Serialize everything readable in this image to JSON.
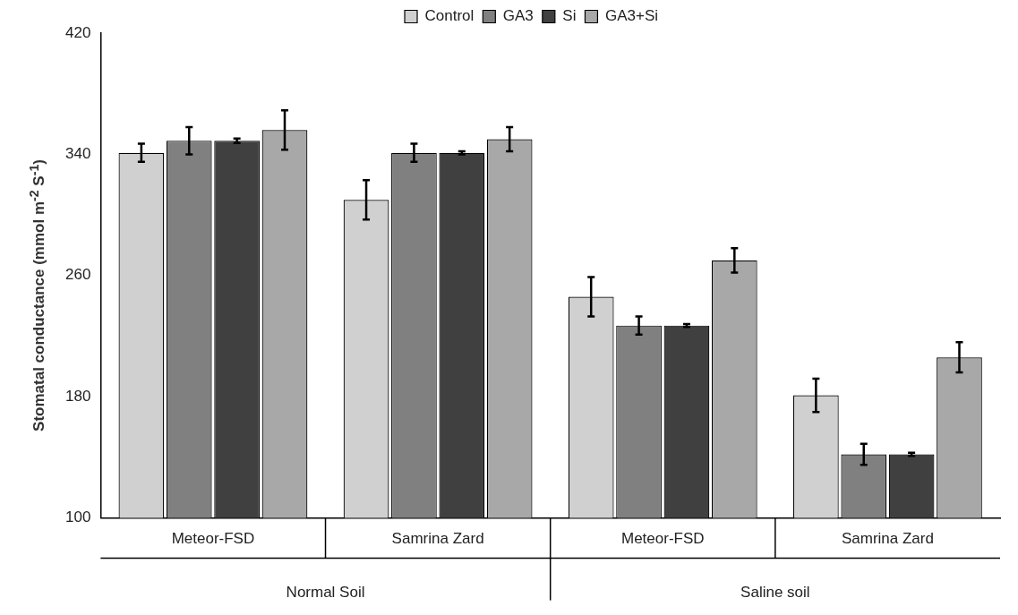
{
  "chart_data": {
    "type": "bar",
    "ylabel": "Stomatal conductance (mmol m$^{-2}$ S$^{-1}$)",
    "categories": [
      "Meteor-FSD",
      "Samrina Zard",
      "Meteor-FSD",
      "Samrina Zard"
    ],
    "series": [
      {
        "name": "Control",
        "color": "#d0d0d0",
        "values": [
          341,
          310,
          246,
          181
        ],
        "errors": [
          6,
          13,
          13,
          11
        ]
      },
      {
        "name": "GA3",
        "color": "#808080",
        "values": [
          349,
          341,
          227,
          142
        ],
        "errors": [
          9,
          6,
          6,
          7
        ]
      },
      {
        "name": "Si",
        "color": "#404040",
        "values": [
          349,
          341,
          227,
          142
        ],
        "errors": [
          1.5,
          1,
          1,
          1
        ]
      },
      {
        "name": "GA3+Si",
        "color": "#a8a8a8",
        "values": [
          356,
          350,
          270,
          206
        ],
        "errors": [
          13,
          8,
          8,
          10
        ]
      }
    ],
    "ylim": [
      100,
      420
    ],
    "yticks": [
      100,
      180,
      260,
      340,
      420
    ],
    "grid": false,
    "legend": "top",
    "annotations": [
      "Normal Soil",
      "Saline soil"
    ]
  }
}
